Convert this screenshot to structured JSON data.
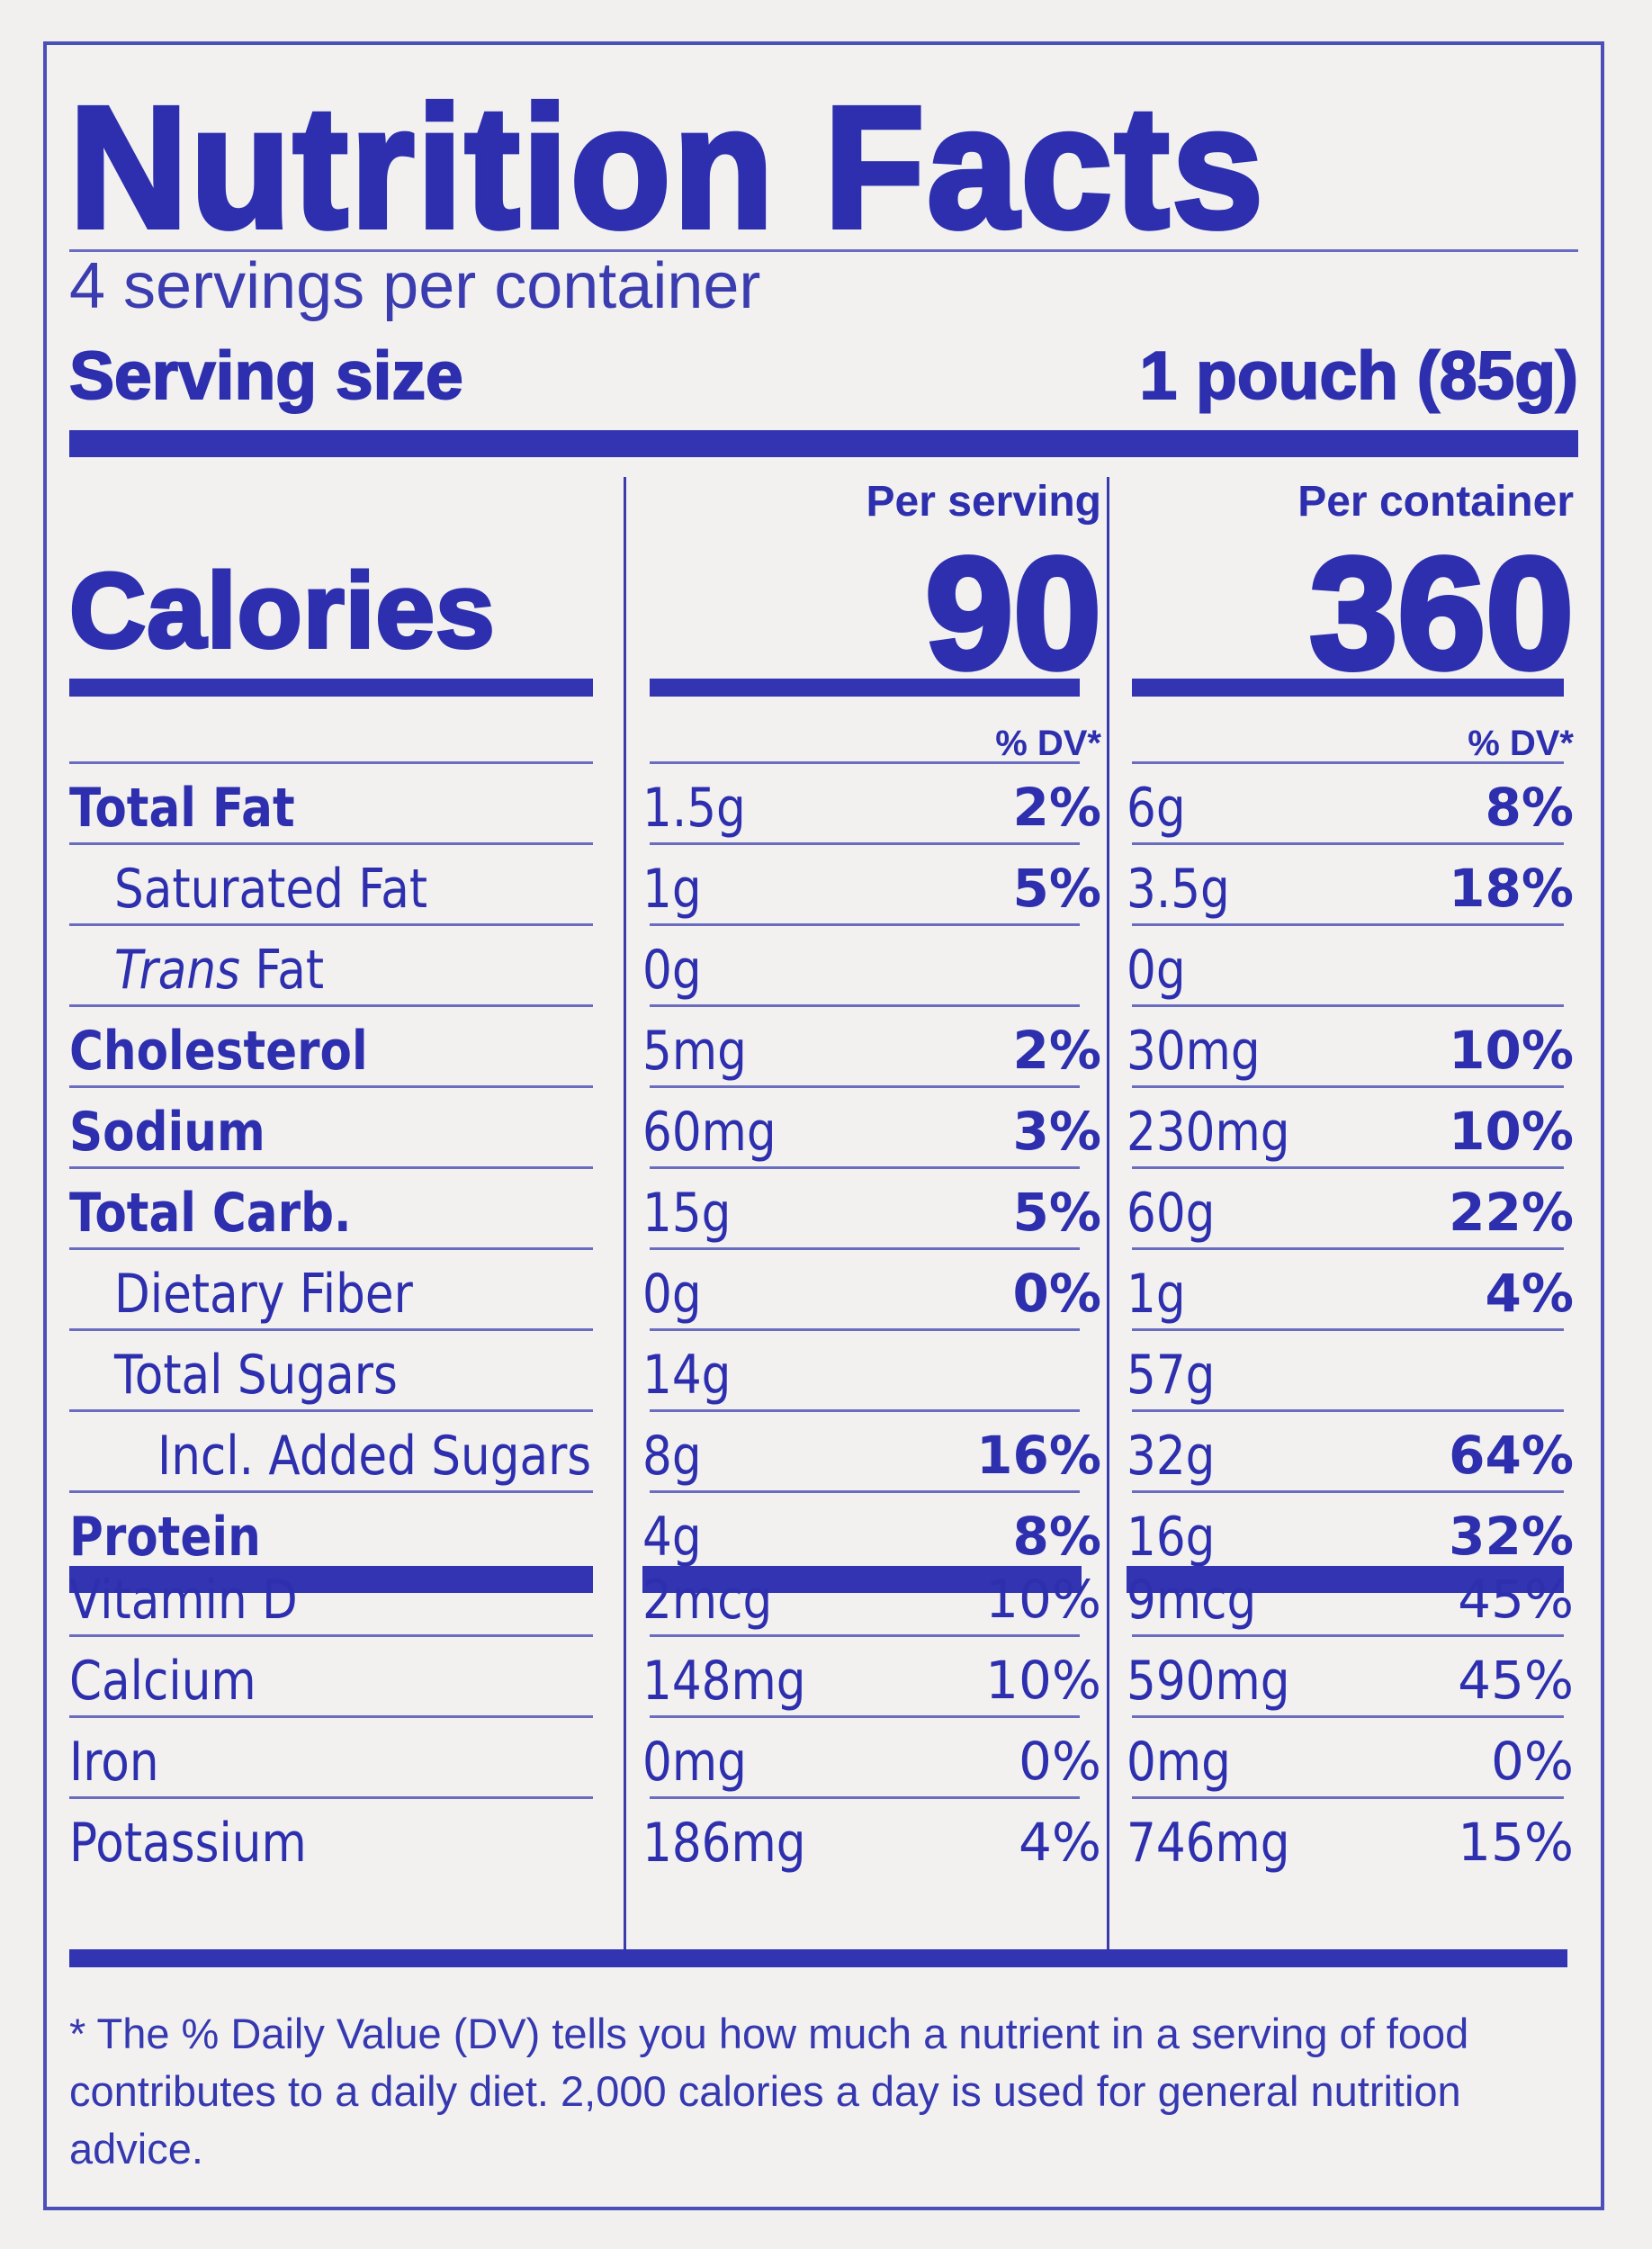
{
  "title": "Nutrition Facts",
  "servings_per_container": "4 servings per container",
  "serving_size_label": "Serving size",
  "serving_size_value": "1 pouch (85g)",
  "calories_label": "Calories",
  "columns": [
    {
      "header": "Per serving",
      "calories": "90",
      "dv_header": "% DV*"
    },
    {
      "header": "Per container",
      "calories": "360",
      "dv_header": "% DV*"
    }
  ],
  "nutrients": [
    {
      "label": "Total Fat",
      "style": "bold",
      "indent": 0,
      "serving_amount": "1.5g",
      "serving_dv": "2%",
      "container_amount": "6g",
      "container_dv": "8%"
    },
    {
      "label": "Saturated Fat",
      "style": "normal",
      "indent": 1,
      "serving_amount": "1g",
      "serving_dv": "5%",
      "container_amount": "3.5g",
      "container_dv": "18%"
    },
    {
      "label_italic": "Trans",
      "label": " Fat",
      "style": "normal",
      "indent": 1,
      "serving_amount": "0g",
      "serving_dv": "",
      "container_amount": "0g",
      "container_dv": ""
    },
    {
      "label": "Cholesterol",
      "style": "bold",
      "indent": 0,
      "serving_amount": "5mg",
      "serving_dv": "2%",
      "container_amount": "30mg",
      "container_dv": "10%"
    },
    {
      "label": "Sodium",
      "style": "bold",
      "indent": 0,
      "serving_amount": "60mg",
      "serving_dv": "3%",
      "container_amount": "230mg",
      "container_dv": "10%"
    },
    {
      "label": "Total Carb.",
      "style": "bold",
      "indent": 0,
      "serving_amount": "15g",
      "serving_dv": "5%",
      "container_amount": "60g",
      "container_dv": "22%"
    },
    {
      "label": "Dietary Fiber",
      "style": "normal",
      "indent": 1,
      "serving_amount": "0g",
      "serving_dv": "0%",
      "container_amount": "1g",
      "container_dv": "4%"
    },
    {
      "label": "Total Sugars",
      "style": "normal",
      "indent": 1,
      "serving_amount": "14g",
      "serving_dv": "",
      "container_amount": "57g",
      "container_dv": ""
    },
    {
      "label": "Incl. Added Sugars",
      "style": "normal",
      "indent": 2,
      "serving_amount": "8g",
      "serving_dv": "16%",
      "container_amount": "32g",
      "container_dv": "64%"
    },
    {
      "label": "Protein",
      "style": "bold",
      "indent": 0,
      "serving_amount": "4g",
      "serving_dv": "8%",
      "container_amount": "16g",
      "container_dv": "32%"
    }
  ],
  "vitamins": [
    {
      "label": "Vitamin D",
      "serving_amount": "2mcg",
      "serving_dv": "10%",
      "container_amount": "9mcg",
      "container_dv": "45%"
    },
    {
      "label": "Calcium",
      "serving_amount": "148mg",
      "serving_dv": "10%",
      "container_amount": "590mg",
      "container_dv": "45%"
    },
    {
      "label": "Iron",
      "serving_amount": "0mg",
      "serving_dv": "0%",
      "container_amount": "0mg",
      "container_dv": "0%"
    },
    {
      "label": "Potassium",
      "serving_amount": "186mg",
      "serving_dv": "4%",
      "container_amount": "746mg",
      "container_dv": "15%"
    }
  ],
  "footnote": "* The % Daily Value (DV) tells you how much a nutrient in a serving of food contributes to a daily diet. 2,000 calories a day is used for general nutrition advice.",
  "colors": {
    "ink": "#2d2fae",
    "background": "#f2f1ef"
  }
}
